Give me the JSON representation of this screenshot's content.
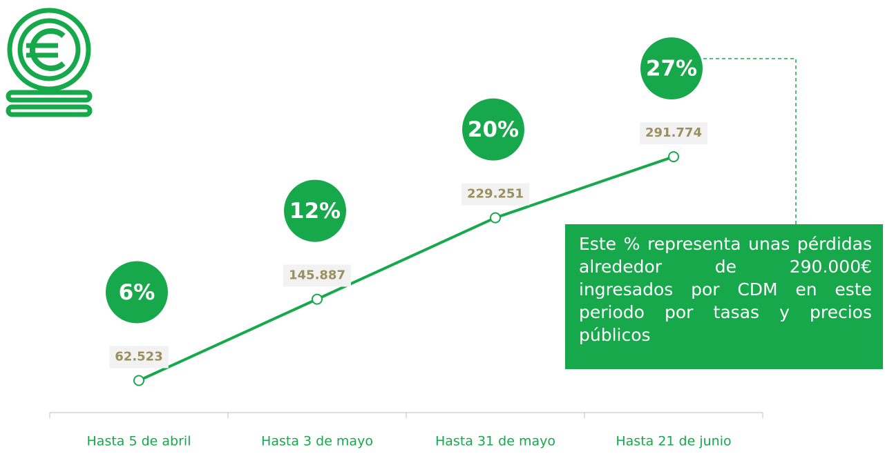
{
  "chart_data": {
    "type": "line",
    "categories": [
      "Hasta 5 de abril",
      "Hasta 3 de mayo",
      "Hasta 31 de mayo",
      "Hasta 21 de junio"
    ],
    "series": [
      {
        "color": "#16a84a",
        "values": [
          62523,
          145887,
          229251,
          291774
        ],
        "value_labels": [
          "62.523",
          "145.887",
          "229.251",
          "291.774"
        ]
      }
    ],
    "percent_labels": [
      "6%",
      "12%",
      "20%",
      "27%"
    ],
    "note": "Este % representa unas pérdidas alrededor de 290.000€ ingresados por CDM en este periodo por tasas y precios públicos",
    "ylim": [
      0,
      400000
    ]
  }
}
